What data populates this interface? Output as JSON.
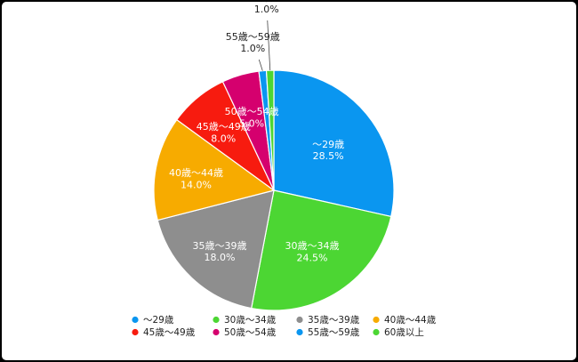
{
  "chart_data": {
    "type": "pie",
    "categories": [
      "〜29歳",
      "30歳〜34歳",
      "35歳〜39歳",
      "40歳〜44歳",
      "45歳〜49歳",
      "50歳〜54歳",
      "55歳〜59歳",
      "60歳以上"
    ],
    "values": [
      28.5,
      24.5,
      18.0,
      14.0,
      8.0,
      5.0,
      1.0,
      1.0
    ],
    "value_labels": [
      "28.5%",
      "24.5%",
      "18.0%",
      "14.0%",
      "8.0%",
      "5.0%",
      "1.0%",
      "1.0%"
    ],
    "colors": [
      "#0a96f0",
      "#4cd633",
      "#8e8e8e",
      "#f7ab00",
      "#f71b0f",
      "#d5006e",
      "#0a96f0",
      "#4cd633"
    ],
    "start": "12 o'clock, clockwise",
    "legend_position": "bottom"
  }
}
